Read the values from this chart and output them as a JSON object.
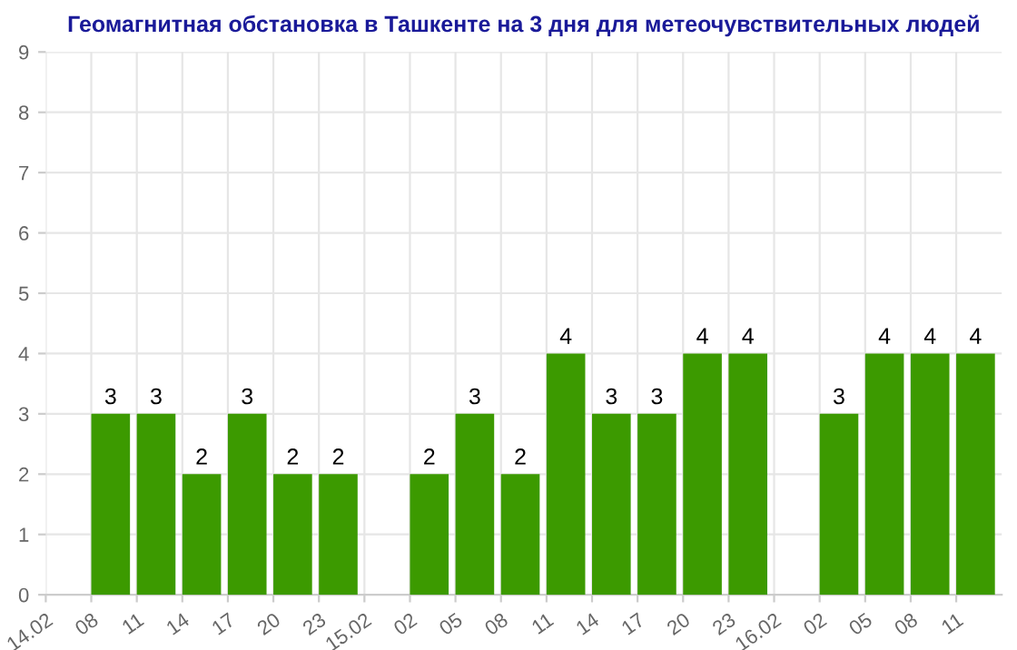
{
  "chart_data": {
    "type": "bar",
    "title": "Геомагнитная обстановка в Ташкенте на 3 дня для метеочувствительных людей",
    "categories": [
      "14.02",
      "08",
      "11",
      "14",
      "17",
      "20",
      "23",
      "15.02",
      "02",
      "05",
      "08",
      "11",
      "14",
      "17",
      "20",
      "23",
      "16.02",
      "02",
      "05",
      "08",
      "11"
    ],
    "values": [
      null,
      3,
      3,
      2,
      3,
      2,
      2,
      null,
      2,
      3,
      2,
      4,
      3,
      3,
      4,
      4,
      null,
      3,
      4,
      4,
      4
    ],
    "color": "#3c9a00",
    "ylim": [
      0,
      9
    ],
    "yticks": [
      0,
      1,
      2,
      3,
      4,
      5,
      6,
      7,
      8,
      9
    ],
    "grid": true,
    "data_labels": true
  }
}
